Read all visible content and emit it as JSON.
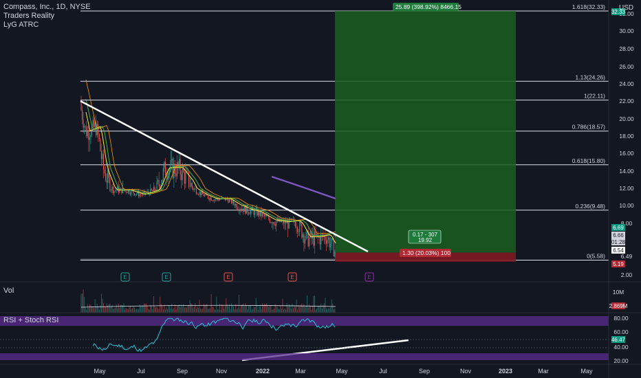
{
  "header": {
    "symbol_line": "Compass, Inc., 1D, NYSE",
    "indicator_1": "Traders Reality",
    "indicator_2": "LyG ATRC",
    "currency": "USD"
  },
  "fib_levels": [
    {
      "label": "1.618(32.33)",
      "price": 32.33
    },
    {
      "label": "1.13(24.26)",
      "price": 24.26
    },
    {
      "label": "1(22.11)",
      "price": 22.11
    },
    {
      "label": "0.786(18.57)",
      "price": 18.57
    },
    {
      "label": "0.618(15.80)",
      "price": 15.8
    },
    {
      "label": "0.236(9.48)",
      "price": 9.48
    },
    {
      "label": "0(5.58)",
      "price": 5.58
    }
  ],
  "price_axis": {
    "ticks": [
      "32.00",
      "30.00",
      "28.00",
      "26.00",
      "24.00",
      "22.00",
      "20.00",
      "18.00",
      "16.00",
      "14.00",
      "12.00",
      "10.00",
      "8.00",
      "6.49",
      "2.00"
    ],
    "tags": [
      {
        "text": "32.33",
        "bg": "#089981",
        "fg": "#ffffff"
      },
      {
        "text": "6.69",
        "bg": "#089981",
        "fg": "#ffffff"
      },
      {
        "text": "6.66",
        "bg": "#d1d4dc",
        "fg": "#131722"
      },
      {
        "text": "01:28",
        "bg": "#d1d4dc",
        "fg": "#131722"
      },
      {
        "text": "6.54",
        "bg": "#ffffff",
        "fg": "#131722"
      },
      {
        "text": "5.19",
        "bg": "#b22833",
        "fg": "#ffffff"
      }
    ]
  },
  "position_tool": {
    "target_label": "25.89 (398.92%) 8466.15",
    "entry_label_1": "0.17 - 307",
    "entry_label_2": "19.92",
    "stop_label": "1.30 (20.03%) 100",
    "profit_color": "#1b5e20",
    "loss_color": "#801922"
  },
  "earnings_markers": [
    {
      "letter": "E",
      "color": "#26a69a"
    },
    {
      "letter": "E",
      "color": "#26a69a"
    },
    {
      "letter": "E",
      "color": "#ef5350"
    },
    {
      "letter": "E",
      "color": "#ef5350"
    },
    {
      "letter": "E",
      "color": "#9c27b0"
    }
  ],
  "volume_pane": {
    "label": "Vol",
    "axis_tick": "10M",
    "value_tag": "2.869M"
  },
  "rsi_pane": {
    "label": "RSI + Stoch RSI",
    "ticks": [
      "80.00",
      "60.00",
      "40.00",
      "20.00"
    ],
    "value_tag": "46.47"
  },
  "time_axis": [
    "May",
    "Jul",
    "Sep",
    "Nov",
    "2022",
    "Mar",
    "May",
    "Jul",
    "Sep",
    "Nov",
    "2023",
    "Mar",
    "May"
  ],
  "colors": {
    "background": "#131722",
    "up": "#26a69a",
    "down": "#ef5350",
    "trendline": "#ffffff",
    "rsi_line": "#26c6da",
    "rsi_band": "#5b2c8f"
  }
}
